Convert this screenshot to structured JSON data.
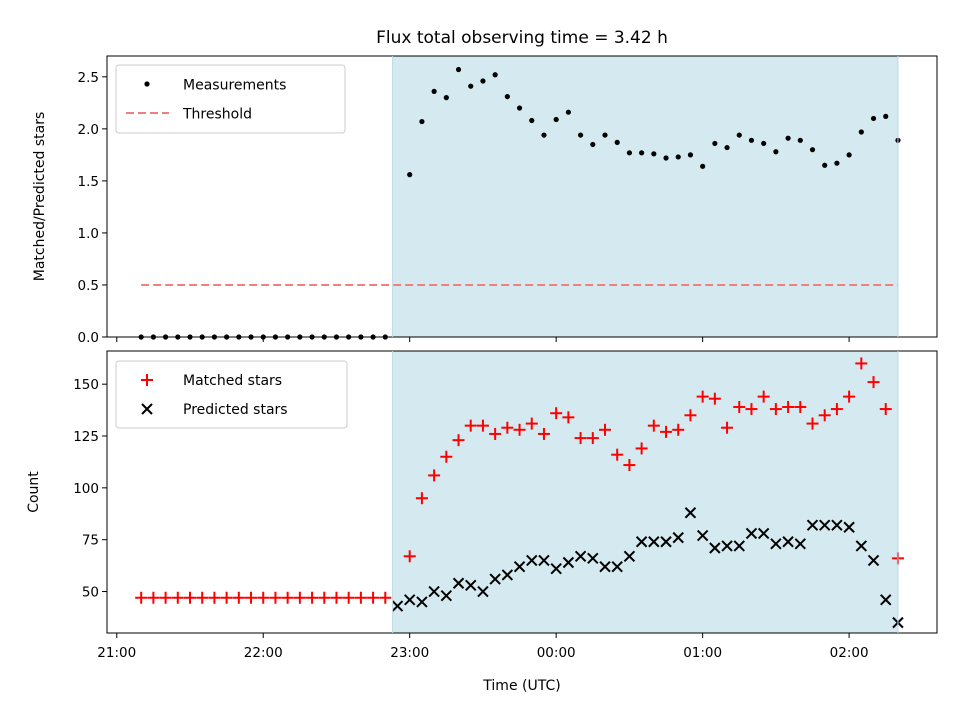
{
  "chart_data": [
    {
      "type": "scatter",
      "title": "Flux total observing time = 3.42 h",
      "xlabel": "",
      "ylabel": "Matched/Predicted stars",
      "x_axis": "time (UTC, 2 consecutive nights; ticks shown 21:00 to 02:00)",
      "ylim": [
        0,
        2.7
      ],
      "yticks": [
        "0.0",
        "0.5",
        "1.0",
        "1.5",
        "2.0",
        "2.5"
      ],
      "legend_location": "upper-left",
      "shaded_interval": {
        "start": "22:53",
        "end": "02:20",
        "color": "#d4eaf0"
      },
      "threshold": {
        "name": "Threshold",
        "value": 0.5,
        "from": "21:10",
        "to": "02:20",
        "color": "#f08080",
        "style": "dashed"
      },
      "series": [
        {
          "name": "Measurements",
          "color": "#000000",
          "marker": "dot",
          "x": [
            "21:10",
            "21:15",
            "21:20",
            "21:25",
            "21:30",
            "21:35",
            "21:40",
            "21:45",
            "21:50",
            "21:55",
            "22:00",
            "22:05",
            "22:10",
            "22:15",
            "22:20",
            "22:25",
            "22:30",
            "22:35",
            "22:40",
            "22:45",
            "22:50",
            "23:00",
            "23:05",
            "23:10",
            "23:15",
            "23:20",
            "23:25",
            "23:30",
            "23:35",
            "23:40",
            "23:45",
            "23:50",
            "23:55",
            "00:00",
            "00:05",
            "00:10",
            "00:15",
            "00:20",
            "00:25",
            "00:30",
            "00:35",
            "00:40",
            "00:45",
            "00:50",
            "00:55",
            "01:00",
            "01:05",
            "01:10",
            "01:15",
            "01:20",
            "01:25",
            "01:30",
            "01:35",
            "01:40",
            "01:45",
            "01:50",
            "01:55",
            "02:00",
            "02:05",
            "02:10",
            "02:15",
            "02:20"
          ],
          "y": [
            0,
            0,
            0,
            0,
            0,
            0,
            0,
            0,
            0,
            0,
            0,
            0,
            0,
            0,
            0,
            0,
            0,
            0,
            0,
            0,
            0,
            1.56,
            2.07,
            2.36,
            2.3,
            2.57,
            2.41,
            2.46,
            2.52,
            2.31,
            2.2,
            2.08,
            1.94,
            2.09,
            2.16,
            1.94,
            1.85,
            1.94,
            1.87,
            1.77,
            1.77,
            1.76,
            1.72,
            1.73,
            1.75,
            1.64,
            1.86,
            1.82,
            1.94,
            1.89,
            1.86,
            1.78,
            1.91,
            1.89,
            1.8,
            1.65,
            1.67,
            1.75,
            1.97,
            2.1,
            2.12,
            1.89
          ]
        }
      ]
    },
    {
      "type": "scatter",
      "title": "",
      "xlabel": "Time (UTC)",
      "ylabel": "Count",
      "xticks": [
        "21:00",
        "22:00",
        "23:00",
        "00:00",
        "01:00",
        "02:00"
      ],
      "ylim": [
        30,
        166
      ],
      "yticks": [
        "50",
        "75",
        "100",
        "125",
        "150"
      ],
      "legend_location": "upper-left",
      "shaded_interval": {
        "start": "22:53",
        "end": "02:20",
        "color": "#d4eaf0"
      },
      "series": [
        {
          "name": "Matched stars",
          "color": "#ff0000",
          "marker": "plus",
          "x": [
            "21:10",
            "21:15",
            "21:20",
            "21:25",
            "21:30",
            "21:35",
            "21:40",
            "21:45",
            "21:50",
            "21:55",
            "22:00",
            "22:05",
            "22:10",
            "22:15",
            "22:20",
            "22:25",
            "22:30",
            "22:35",
            "22:40",
            "22:45",
            "22:50",
            "23:00",
            "23:05",
            "23:10",
            "23:15",
            "23:20",
            "23:25",
            "23:30",
            "23:35",
            "23:40",
            "23:45",
            "23:50",
            "23:55",
            "00:00",
            "00:05",
            "00:10",
            "00:15",
            "00:20",
            "00:25",
            "00:30",
            "00:35",
            "00:40",
            "00:45",
            "00:50",
            "00:55",
            "01:00",
            "01:05",
            "01:10",
            "01:15",
            "01:20",
            "01:25",
            "01:30",
            "01:35",
            "01:40",
            "01:45",
            "01:50",
            "01:55",
            "02:00",
            "02:05",
            "02:10",
            "02:15",
            "02:20"
          ],
          "y": [
            47,
            47,
            47,
            47,
            47,
            47,
            47,
            47,
            47,
            47,
            47,
            47,
            47,
            47,
            47,
            47,
            47,
            47,
            47,
            47,
            47,
            67,
            95,
            106,
            115,
            123,
            130,
            130,
            126,
            129,
            128,
            131,
            126,
            136,
            134,
            124,
            124,
            128,
            116,
            111,
            119,
            130,
            127,
            128,
            135,
            144,
            143,
            129,
            139,
            138,
            144,
            138,
            139,
            139,
            131,
            135,
            138,
            144,
            160,
            151,
            138,
            66
          ]
        },
        {
          "name": "Predicted stars",
          "color": "#000000",
          "marker": "x",
          "x": [
            "22:55",
            "23:00",
            "23:05",
            "23:10",
            "23:15",
            "23:20",
            "23:25",
            "23:30",
            "23:35",
            "23:40",
            "23:45",
            "23:50",
            "23:55",
            "00:00",
            "00:05",
            "00:10",
            "00:15",
            "00:20",
            "00:25",
            "00:30",
            "00:35",
            "00:40",
            "00:45",
            "00:50",
            "00:55",
            "01:00",
            "01:05",
            "01:10",
            "01:15",
            "01:20",
            "01:25",
            "01:30",
            "01:35",
            "01:40",
            "01:45",
            "01:50",
            "01:55",
            "02:00",
            "02:05",
            "02:10",
            "02:15",
            "02:20"
          ],
          "y": [
            43,
            46,
            45,
            50,
            48,
            54,
            53,
            50,
            56,
            58,
            62,
            65,
            65,
            61,
            64,
            67,
            66,
            62,
            62,
            67,
            74,
            74,
            74,
            76,
            88,
            77,
            71,
            72,
            72,
            78,
            78,
            73,
            74,
            73,
            82,
            82,
            82,
            81,
            72,
            65,
            46,
            35
          ]
        }
      ]
    }
  ]
}
